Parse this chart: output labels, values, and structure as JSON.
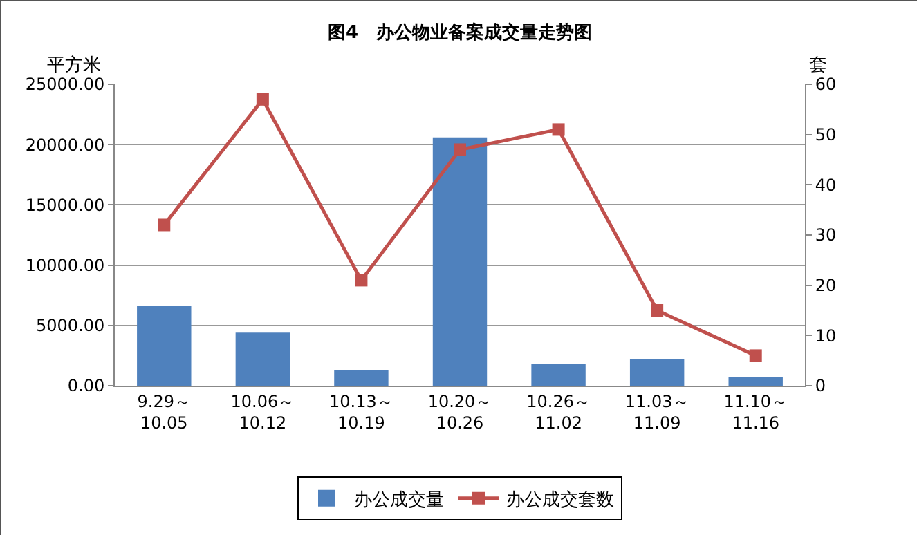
{
  "chart_data": {
    "type": "bar",
    "title": "图4　办公物业备案成交量走势图",
    "ylabel": "平方米",
    "y2label": "套",
    "categories": [
      "9.29～\n10.05",
      "10.06～\n10.12",
      "10.13～\n10.19",
      "10.20～\n10.26",
      "10.26～\n11.02",
      "11.03～\n11.09",
      "11.10～\n11.16"
    ],
    "series": [
      {
        "name": "办公成交量",
        "color": "#4f81bd",
        "values": [
          6600,
          4400,
          1300,
          20600,
          1800,
          2200,
          700
        ]
      },
      {
        "name": "办公成交套数",
        "type": "line",
        "axis": "y2",
        "color": "#c0504d",
        "marker": "square",
        "values": [
          32,
          57,
          21,
          47,
          51,
          15,
          6
        ]
      }
    ],
    "ylim": [
      0,
      25000
    ],
    "yticks": [
      {
        "value": 0,
        "label": "0.00"
      },
      {
        "value": 5000,
        "label": "5000.00"
      },
      {
        "value": 10000,
        "label": "10000.00"
      },
      {
        "value": 15000,
        "label": "15000.00"
      },
      {
        "value": 20000,
        "label": "20000.00"
      },
      {
        "value": 25000,
        "label": "25000.00"
      }
    ],
    "y2lim": [
      0,
      60
    ],
    "y2ticks": [
      0,
      10,
      20,
      30,
      40,
      50,
      60
    ],
    "grid": "y",
    "legend": "bottom"
  }
}
